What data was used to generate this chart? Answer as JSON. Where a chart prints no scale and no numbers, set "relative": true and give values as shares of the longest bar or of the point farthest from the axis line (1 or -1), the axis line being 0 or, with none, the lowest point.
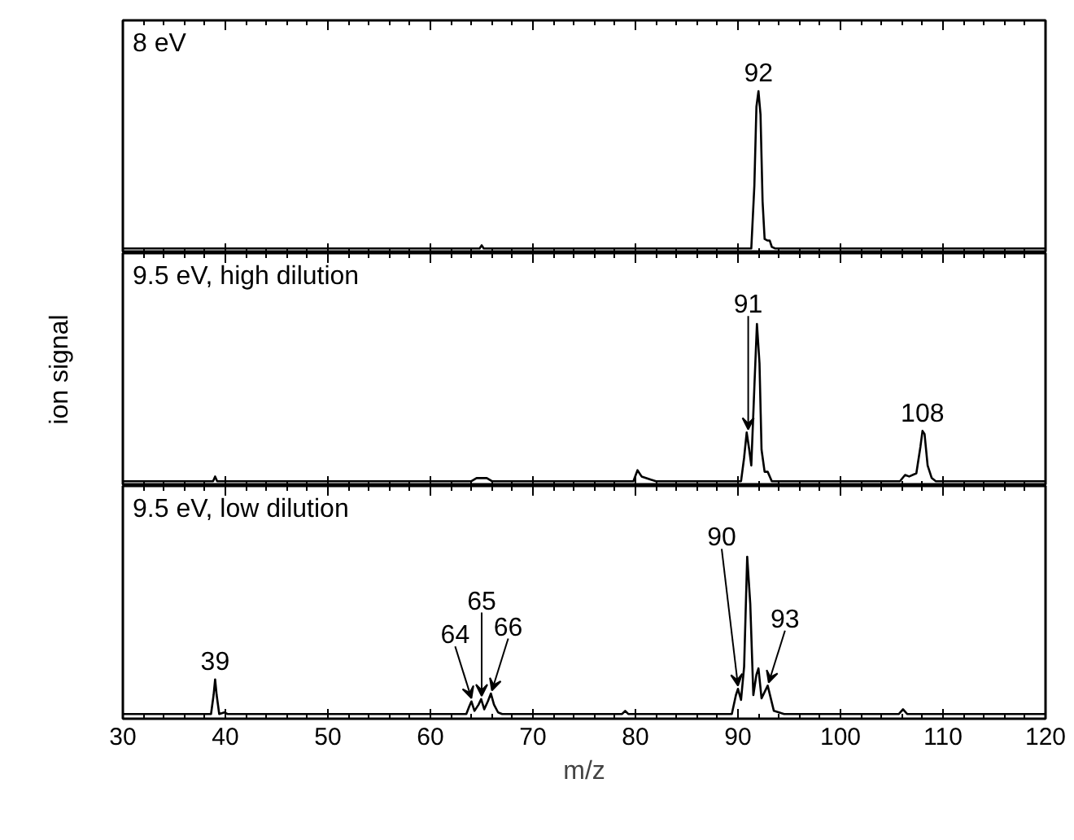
{
  "chart_data": [
    {
      "type": "line",
      "title": "8 eV",
      "relative": true,
      "xlim": [
        30,
        120
      ],
      "xticks": [
        30,
        40,
        50,
        60,
        70,
        80,
        90,
        100,
        110,
        120
      ],
      "tick_labels": false,
      "series": [
        {
          "color": "#000000",
          "x": [
            30,
            40,
            50,
            55,
            64.8,
            65,
            65.2,
            75,
            85,
            91.3,
            91.6,
            91.8,
            92,
            92.2,
            92.4,
            92.6,
            92.9,
            93.1,
            93.3,
            93.6,
            100,
            110,
            120
          ],
          "values": [
            0,
            0,
            0,
            0,
            0,
            0.02,
            0,
            0,
            0,
            0,
            0.4,
            0.9,
            1,
            0.85,
            0.3,
            0.06,
            0.05,
            0.05,
            0.01,
            0,
            0,
            0,
            0
          ]
        }
      ],
      "annotations": [
        {
          "text": "92",
          "x": 92,
          "y": 1
        }
      ]
    },
    {
      "type": "line",
      "title": "9.5 eV, high dilution",
      "ylabel": "ion signal",
      "relative": true,
      "xlim": [
        30,
        120
      ],
      "xticks": [
        30,
        40,
        50,
        60,
        70,
        80,
        90,
        100,
        110,
        120
      ],
      "tick_labels": false,
      "series": [
        {
          "color": "#000000",
          "x": [
            30,
            35,
            38.8,
            39,
            39.2,
            50,
            64,
            64.5,
            65,
            65.5,
            66,
            72,
            79.8,
            80.2,
            80.6,
            81.5,
            82,
            86,
            90.3,
            90.6,
            90.85,
            91.1,
            91.3,
            91.6,
            91.85,
            92.1,
            92.3,
            92.6,
            92.9,
            93.3,
            100,
            105.8,
            106.3,
            106.7,
            107.4,
            107.8,
            108,
            108.2,
            108.5,
            108.9,
            109.3,
            115,
            120
          ],
          "values": [
            0,
            0,
            0,
            0.03,
            0,
            0,
            0,
            0.02,
            0.02,
            0.02,
            0,
            0,
            0,
            0.07,
            0.03,
            0.01,
            0,
            0,
            0,
            0.15,
            0.31,
            0.2,
            0.1,
            0.6,
            1,
            0.75,
            0.2,
            0.06,
            0.06,
            0,
            0,
            0,
            0.04,
            0.03,
            0.05,
            0.22,
            0.32,
            0.3,
            0.1,
            0.02,
            0,
            0,
            0
          ]
        }
      ],
      "annotations": [
        {
          "text": "91",
          "x": 91,
          "y": 0.31
        },
        {
          "text": "108",
          "x": 108,
          "y": 0.32
        }
      ]
    },
    {
      "type": "line",
      "title": "9.5 eV, low dilution",
      "xlabel": "m/z",
      "relative": true,
      "xlim": [
        30,
        120
      ],
      "xticks": [
        30,
        40,
        50,
        60,
        70,
        80,
        90,
        100,
        110,
        120
      ],
      "tick_labels": "x",
      "series": [
        {
          "color": "#000000",
          "x": [
            30,
            35,
            38.6,
            38.85,
            39,
            39.15,
            39.4,
            39.9,
            40.2,
            50,
            63.5,
            63.8,
            64,
            64.3,
            64.7,
            64.95,
            65.25,
            65.6,
            65.9,
            66.2,
            66.6,
            67,
            78.7,
            79,
            79.3,
            85,
            89.4,
            89.8,
            90,
            90.3,
            90.6,
            90.9,
            91.2,
            91.5,
            91.8,
            92,
            92.3,
            92.6,
            92.9,
            93.2,
            93.5,
            94,
            94.5,
            100,
            105.7,
            106.1,
            106.5,
            115,
            120
          ],
          "values": [
            0,
            0,
            0,
            0.12,
            0.22,
            0.12,
            0,
            0.01,
            0,
            0,
            0,
            0.05,
            0.08,
            0.02,
            0.06,
            0.095,
            0.03,
            0.08,
            0.13,
            0.06,
            0.01,
            0,
            0,
            0.02,
            0,
            0,
            0,
            0.12,
            0.16,
            0.09,
            0.3,
            1,
            0.7,
            0.12,
            0.25,
            0.29,
            0.1,
            0.14,
            0.18,
            0.1,
            0.02,
            0.01,
            0,
            0,
            0,
            0.03,
            0,
            0,
            0
          ]
        }
      ],
      "annotations": [
        {
          "text": "39",
          "x": 39,
          "y": 0.22
        },
        {
          "text": "64",
          "x": 64,
          "y": 0.08
        },
        {
          "text": "65",
          "x": 65,
          "y": 0.095
        },
        {
          "text": "66",
          "x": 66,
          "y": 0.13
        },
        {
          "text": "90",
          "x": 90,
          "y": 0.16
        },
        {
          "text": "93",
          "x": 93,
          "y": 0.18
        }
      ]
    }
  ]
}
